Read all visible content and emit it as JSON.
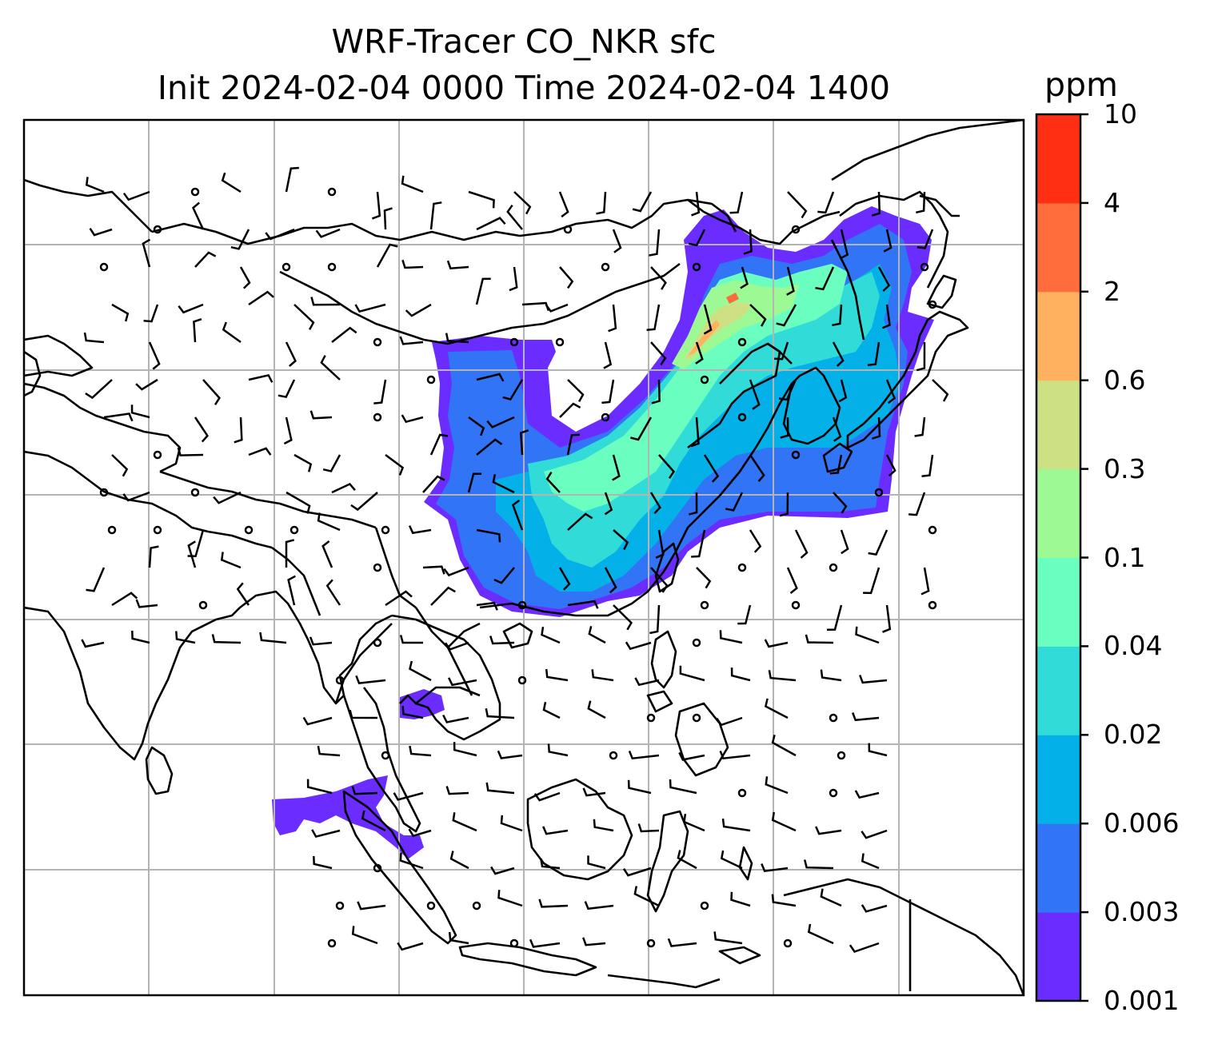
{
  "title": {
    "line1": "WRF-Tracer CO_NKR sfc",
    "line2": "Init 2024-02-04 0000 Time 2024-02-04 1400"
  },
  "colorbar": {
    "unit": "ppm",
    "levels": [
      "0.001",
      "0.003",
      "0.006",
      "0.02",
      "0.04",
      "0.1",
      "0.3",
      "0.6",
      "2",
      "4",
      "10"
    ],
    "colors": [
      "#6a2cff",
      "#3274f6",
      "#04b0e8",
      "#30dbd8",
      "#6affc0",
      "#9cf994",
      "#cde184",
      "#ffb160",
      "#ff6d3d",
      "#ff2f14"
    ]
  },
  "map": {
    "gridline_color": "#b4b4b4",
    "coastline_color": "#000000",
    "barb_color": "#000000"
  }
}
